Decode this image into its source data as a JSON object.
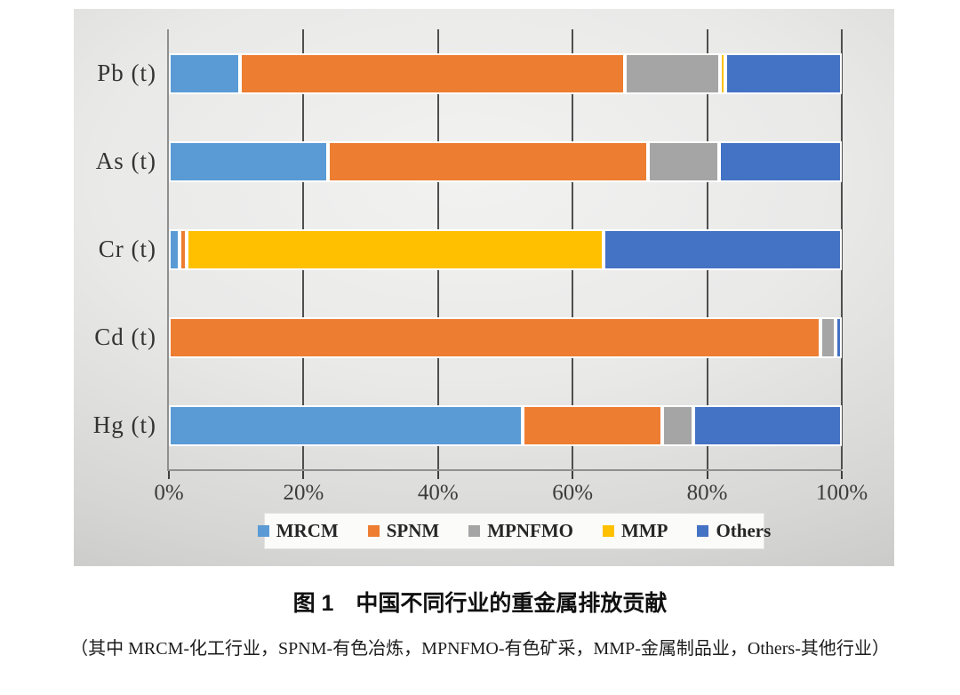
{
  "title": "图 1　中国不同行业的重金属排放贡献",
  "caption": "（其中 MRCM-化工行业，SPNM-有色冶炼，MPNFMO-有色矿采，MMP-金属制品业，Others-其他行业）",
  "chart_data": {
    "type": "bar",
    "orientation": "horizontal-stacked",
    "title": "图 1　中国不同行业的重金属排放贡献",
    "categories": [
      "Pb (t)",
      "As (t)",
      "Cr (t)",
      "Cd (t)",
      "Hg (t)"
    ],
    "series": [
      {
        "name": "MRCM",
        "color": "#5B9BD5",
        "values": [
          10.6,
          23.7,
          1.6,
          0,
          52.6
        ]
      },
      {
        "name": "SPNM",
        "color": "#ED7D31",
        "values": [
          57.2,
          47.5,
          1.0,
          96.8,
          20.7
        ]
      },
      {
        "name": "MPNFMO",
        "color": "#A5A5A5",
        "values": [
          14.1,
          10.6,
          0,
          2.3,
          4.6
        ]
      },
      {
        "name": "MMP",
        "color": "#FFC000",
        "values": [
          0.8,
          0,
          62.0,
          0,
          0
        ]
      },
      {
        "name": "Others",
        "color": "#4472C4",
        "values": [
          17.3,
          18.2,
          35.4,
          0.9,
          22.1
        ]
      }
    ],
    "x_ticks": [
      "0%",
      "20%",
      "40%",
      "60%",
      "80%",
      "100%"
    ],
    "xlim": [
      0,
      100
    ],
    "grid": true,
    "legend_position": "bottom",
    "legend": [
      "MRCM",
      "SPNM",
      "MPNFMO",
      "MMP",
      "Others"
    ]
  }
}
